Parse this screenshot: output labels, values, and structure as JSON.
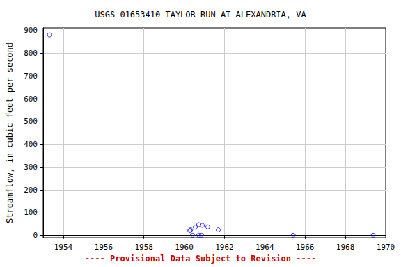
{
  "chart_data": {
    "type": "scatter",
    "title": "USGS 01653410 TAYLOR RUN AT ALEXANDRIA, VA",
    "y_label": "Streamflow, in cubic feet per second",
    "annotations": [
      "---- Provisional Data Subject to Revision ----"
    ],
    "series": [
      {
        "name": "Streamflow",
        "color": "#0000ff",
        "marker": "open_circle",
        "x": [
          1953.31,
          1960.28,
          1960.32,
          1960.41,
          1960.55,
          1960.72,
          1960.9,
          1960.72,
          1960.86,
          1961.17,
          1961.69,
          1965.41,
          1969.38
        ],
        "values": [
          881,
          22,
          25,
          1,
          37,
          48,
          45,
          1,
          1,
          38,
          25,
          1,
          1
        ]
      }
    ],
    "xlim": [
      1953,
      1970
    ],
    "xticks": [
      1954,
      1956,
      1958,
      1960,
      1962,
      1964,
      1966,
      1968,
      1970
    ],
    "ylim": [
      -10,
      912
    ],
    "yticks": [
      0,
      100,
      200,
      300,
      400,
      500,
      600,
      700,
      800,
      900
    ],
    "grid": true
  }
}
